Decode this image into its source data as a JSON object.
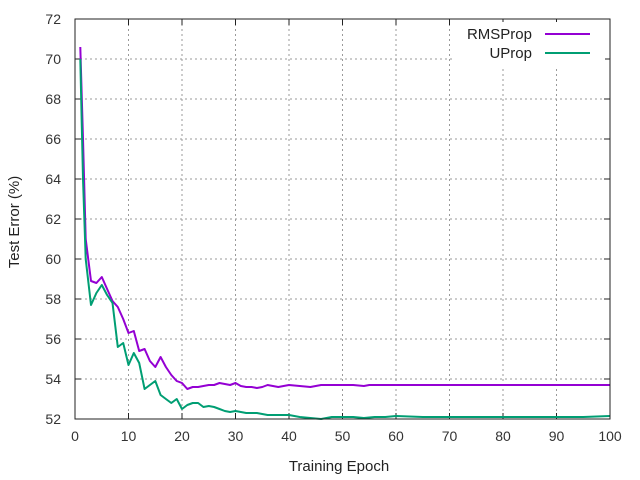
{
  "chart_data": {
    "type": "line",
    "title": "",
    "xlabel": "Training Epoch",
    "ylabel": "Test Error (%)",
    "xlim": [
      0,
      100
    ],
    "ylim": [
      52,
      72
    ],
    "xticks": [
      0,
      10,
      20,
      30,
      40,
      50,
      60,
      70,
      80,
      90,
      100
    ],
    "yticks": [
      52,
      54,
      56,
      58,
      60,
      62,
      64,
      66,
      68,
      70,
      72
    ],
    "grid": true,
    "legend_position": "top-right",
    "series": [
      {
        "name": "RMSProp",
        "color": "#9400d3",
        "x": [
          1,
          1.5,
          2,
          3,
          4,
          5,
          6,
          7,
          8,
          9,
          10,
          11,
          12,
          13,
          14,
          15,
          16,
          17,
          18,
          19,
          20,
          21,
          22,
          23,
          24,
          25,
          26,
          27,
          28,
          29,
          30,
          31,
          32,
          33,
          34,
          35,
          36,
          37,
          38,
          39,
          40,
          42,
          44,
          46,
          48,
          50,
          52,
          54,
          55,
          56,
          58,
          60,
          65,
          70,
          75,
          80,
          85,
          90,
          95,
          100
        ],
        "y": [
          70.6,
          66.0,
          61.0,
          58.9,
          58.8,
          59.1,
          58.5,
          57.9,
          57.6,
          57.0,
          56.3,
          56.4,
          55.4,
          55.5,
          54.9,
          54.6,
          55.1,
          54.6,
          54.2,
          53.9,
          53.8,
          53.5,
          53.6,
          53.6,
          53.65,
          53.7,
          53.7,
          53.8,
          53.75,
          53.7,
          53.8,
          53.65,
          53.6,
          53.6,
          53.55,
          53.6,
          53.7,
          53.65,
          53.6,
          53.65,
          53.7,
          53.65,
          53.6,
          53.7,
          53.7,
          53.7,
          53.7,
          53.65,
          53.7,
          53.7,
          53.7,
          53.7,
          53.7,
          53.7,
          53.7,
          53.7,
          53.7,
          53.7,
          53.7,
          53.7
        ]
      },
      {
        "name": "UProp",
        "color": "#009e73",
        "x": [
          1,
          1.5,
          2,
          3,
          4,
          5,
          6,
          7,
          8,
          9,
          10,
          11,
          12,
          13,
          14,
          15,
          16,
          17,
          18,
          19,
          20,
          21,
          22,
          23,
          24,
          25,
          26,
          27,
          28,
          29,
          30,
          32,
          34,
          36,
          38,
          40,
          42,
          44,
          46,
          48,
          50,
          52,
          54,
          56,
          58,
          60,
          65,
          70,
          75,
          80,
          85,
          90,
          95,
          100
        ],
        "y": [
          70.0,
          64.0,
          60.0,
          57.7,
          58.3,
          58.7,
          58.2,
          57.8,
          55.6,
          55.8,
          54.7,
          55.3,
          54.8,
          53.5,
          53.7,
          53.9,
          53.2,
          53.0,
          52.8,
          53.0,
          52.5,
          52.7,
          52.8,
          52.8,
          52.6,
          52.65,
          52.6,
          52.5,
          52.4,
          52.35,
          52.4,
          52.3,
          52.3,
          52.2,
          52.2,
          52.2,
          52.1,
          52.05,
          52.0,
          52.1,
          52.1,
          52.1,
          52.05,
          52.1,
          52.1,
          52.15,
          52.1,
          52.1,
          52.1,
          52.1,
          52.1,
          52.1,
          52.1,
          52.15
        ]
      }
    ]
  }
}
